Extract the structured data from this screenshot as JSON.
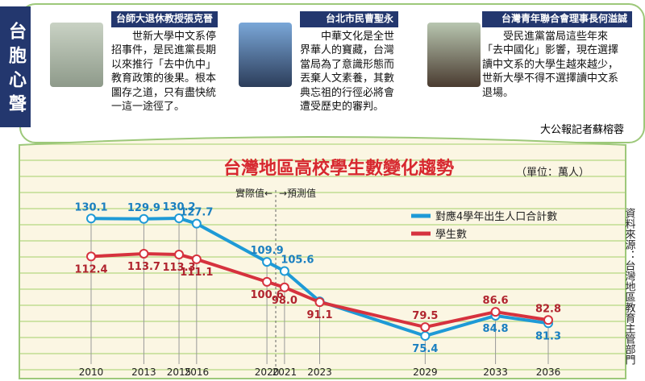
{
  "sidebar": "台胞心聲",
  "quotes": [
    {
      "header": "台師大退休教授張克晉",
      "lines": [
        "世新大學中文系停",
        "招事件，是民進黨長期",
        "以來推行「去中仇中」",
        "教育政策的後果。根本",
        "圖存之道，只有盡快統",
        "一這一途徑了。"
      ]
    },
    {
      "header": "台北市民曹聖永",
      "lines": [
        "中華文化是全世",
        "界華人的寶藏，台灣",
        "當局為了意識形態而",
        "丟棄人文素養，其數",
        "典忘祖的行徑必將會",
        "遭受歷史的審判。"
      ]
    },
    {
      "header": "台灣青年聯合會理事長何溢誠",
      "lines": [
        "受民進黨當局這些年來",
        "「去中國化」影響，現在選擇",
        "讀中文系的大學生越來越少，",
        "世新大學不得不選擇讀中文系",
        "退場。"
      ]
    }
  ],
  "byline": "大公報記者蘇榕蓉",
  "chart_data": {
    "type": "line",
    "title": "台灣地區高校學生數變化趨勢",
    "subtitle": "（單位：萬人）",
    "source": "資料來源：台灣地區教育主管部門",
    "annotations": [
      "實際值←",
      "→預測值"
    ],
    "x": [
      2010,
      2013,
      2015,
      2016,
      2020,
      2021,
      2023,
      2029,
      2033,
      2036
    ],
    "series": [
      {
        "name": "對應4學年出生人口合計數",
        "color": "#1e9ad6",
        "values": [
          130.1,
          129.9,
          130.2,
          127.7,
          109.9,
          105.6,
          91.5,
          75.4,
          84.8,
          81.3
        ],
        "value_labels": [
          "130.1",
          "129.9",
          "130.2",
          "127.7",
          "109.9",
          "105.6",
          null,
          "75.4",
          "84.8",
          "81.3"
        ]
      },
      {
        "name": "學生數",
        "color": "#d6323e",
        "values": [
          112.4,
          113.7,
          113.3,
          111.1,
          100.6,
          98.0,
          91.1,
          79.5,
          86.6,
          82.8
        ],
        "value_labels": [
          "112.4",
          "113.7",
          "113.3",
          "111.1",
          "100.6",
          "98.0",
          "91.1",
          "79.5",
          "86.6",
          "82.8"
        ]
      }
    ],
    "legend": "upper right"
  }
}
